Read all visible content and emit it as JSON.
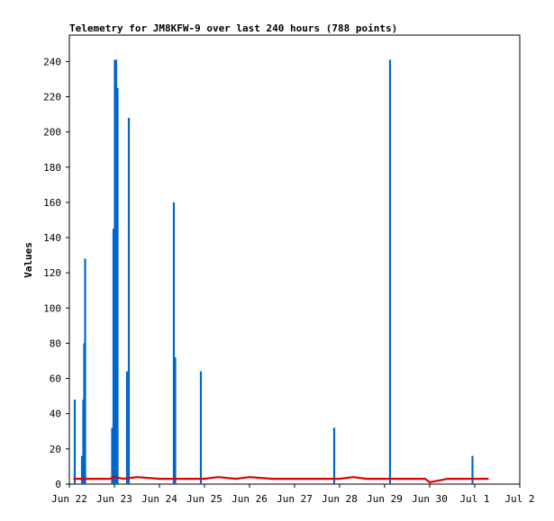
{
  "chart_data": {
    "type": "line",
    "title": "Telemetry for JM8KFW-9 over last 240 hours (788 points)",
    "xlabel": "",
    "ylabel": "Values",
    "ylim": [
      0,
      255
    ],
    "y_ticks": [
      0,
      20,
      40,
      60,
      80,
      100,
      120,
      140,
      160,
      180,
      200,
      220,
      240
    ],
    "x_tick_labels": [
      "Jun 22",
      "Jun 23",
      "Jun 24",
      "Jun 25",
      "Jun 26",
      "Jun 27",
      "Jun 28",
      "Jun 29",
      "Jun 30",
      "Jul 1",
      "Jul 2"
    ],
    "x_unit": "days since Jun 22 00:00",
    "xlim": [
      0,
      10
    ],
    "grid": false,
    "colors": {
      "spikes": "#0066cc",
      "baseline": "#dd0000",
      "axis": "#000000"
    },
    "series": [
      {
        "name": "",
        "color": "#0066cc",
        "style": "spikes",
        "points": [
          [
            0.12,
            48
          ],
          [
            0.28,
            16
          ],
          [
            0.31,
            48
          ],
          [
            0.33,
            80
          ],
          [
            0.35,
            128
          ],
          [
            0.95,
            32
          ],
          [
            0.98,
            145
          ],
          [
            1.01,
            241
          ],
          [
            1.04,
            241
          ],
          [
            1.07,
            225
          ],
          [
            1.28,
            64
          ],
          [
            1.32,
            208
          ],
          [
            2.32,
            160
          ],
          [
            2.35,
            72
          ],
          [
            2.92,
            64
          ],
          [
            5.88,
            32
          ],
          [
            7.12,
            241
          ],
          [
            8.95,
            16
          ]
        ]
      },
      {
        "name": "",
        "color": "#dd0000",
        "style": "line",
        "points": [
          [
            0.1,
            3
          ],
          [
            0.5,
            3
          ],
          [
            0.9,
            3
          ],
          [
            1.0,
            4
          ],
          [
            1.2,
            3
          ],
          [
            1.5,
            4
          ],
          [
            2.0,
            3
          ],
          [
            2.5,
            3
          ],
          [
            3.0,
            3
          ],
          [
            3.3,
            4
          ],
          [
            3.7,
            3
          ],
          [
            4.0,
            4
          ],
          [
            4.5,
            3
          ],
          [
            5.0,
            3
          ],
          [
            5.5,
            3
          ],
          [
            6.0,
            3
          ],
          [
            6.3,
            4
          ],
          [
            6.6,
            3
          ],
          [
            7.0,
            3
          ],
          [
            7.5,
            3
          ],
          [
            7.9,
            3
          ],
          [
            8.0,
            1
          ],
          [
            8.2,
            2
          ],
          [
            8.4,
            3
          ],
          [
            8.7,
            3
          ],
          [
            9.0,
            3
          ],
          [
            9.3,
            3
          ]
        ]
      }
    ]
  }
}
